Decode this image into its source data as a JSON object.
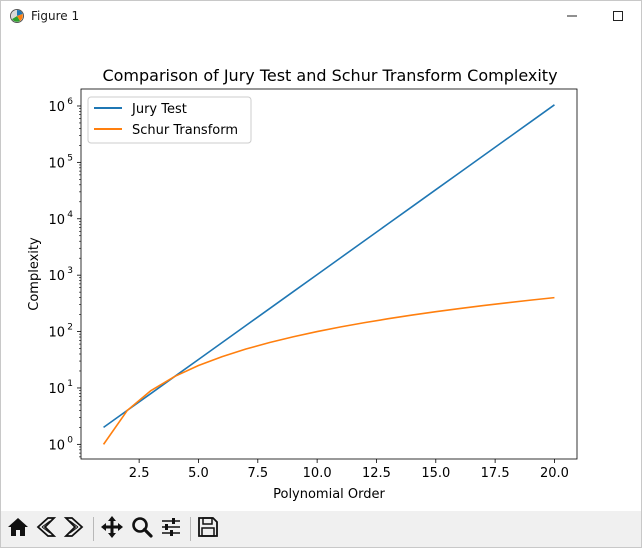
{
  "window": {
    "title": "Figure 1",
    "icons": [
      "app-icon",
      "minimize-icon",
      "maximize-icon",
      "close-icon"
    ]
  },
  "toolbar": {
    "buttons": [
      {
        "name": "home-button",
        "icon": "home-icon"
      },
      {
        "name": "back-button",
        "icon": "back-arrow-icon"
      },
      {
        "name": "forward-button",
        "icon": "forward-arrow-icon"
      },
      {
        "name": "pan-button",
        "icon": "move-icon"
      },
      {
        "name": "zoom-button",
        "icon": "zoom-icon"
      },
      {
        "name": "configure-subplots-button",
        "icon": "sliders-icon"
      },
      {
        "name": "save-button",
        "icon": "save-icon"
      }
    ]
  },
  "chart_data": {
    "type": "line",
    "title": "Comparison of Jury Test and Schur Transform Complexity",
    "xlabel": "Polynomial Order",
    "ylabel": "Complexity",
    "yscale": "log",
    "xlim": [
      0.05,
      20.95
    ],
    "ylim": [
      0.55,
      2000000
    ],
    "xticks": [
      2.5,
      5.0,
      7.5,
      10.0,
      12.5,
      15.0,
      17.5,
      20.0
    ],
    "xtick_labels": [
      "2.5",
      "5.0",
      "7.5",
      "10.0",
      "12.5",
      "15.0",
      "17.5",
      "20.0"
    ],
    "yticks": [
      {
        "base": "10",
        "exp": "0"
      },
      {
        "base": "10",
        "exp": "1"
      },
      {
        "base": "10",
        "exp": "2"
      },
      {
        "base": "10",
        "exp": "3"
      },
      {
        "base": "10",
        "exp": "4"
      },
      {
        "base": "10",
        "exp": "5"
      },
      {
        "base": "10",
        "exp": "6"
      }
    ],
    "grid": false,
    "legend_position": "upper left",
    "x": [
      1,
      2,
      3,
      4,
      5,
      6,
      7,
      8,
      9,
      10,
      11,
      12,
      13,
      14,
      15,
      16,
      17,
      18,
      19,
      20
    ],
    "series": [
      {
        "name": "Jury Test",
        "color": "#1f77b4",
        "values": [
          2,
          4,
          8,
          16,
          32,
          64,
          128,
          256,
          512,
          1024,
          2048,
          4096,
          8192,
          16384,
          32768,
          65536,
          131072,
          262144,
          524288,
          1048576
        ]
      },
      {
        "name": "Schur Transform",
        "color": "#ff7f0e",
        "values": [
          1,
          4,
          9,
          16,
          25,
          36,
          49,
          64,
          81,
          100,
          121,
          144,
          169,
          196,
          225,
          256,
          289,
          324,
          361,
          400
        ]
      }
    ]
  }
}
